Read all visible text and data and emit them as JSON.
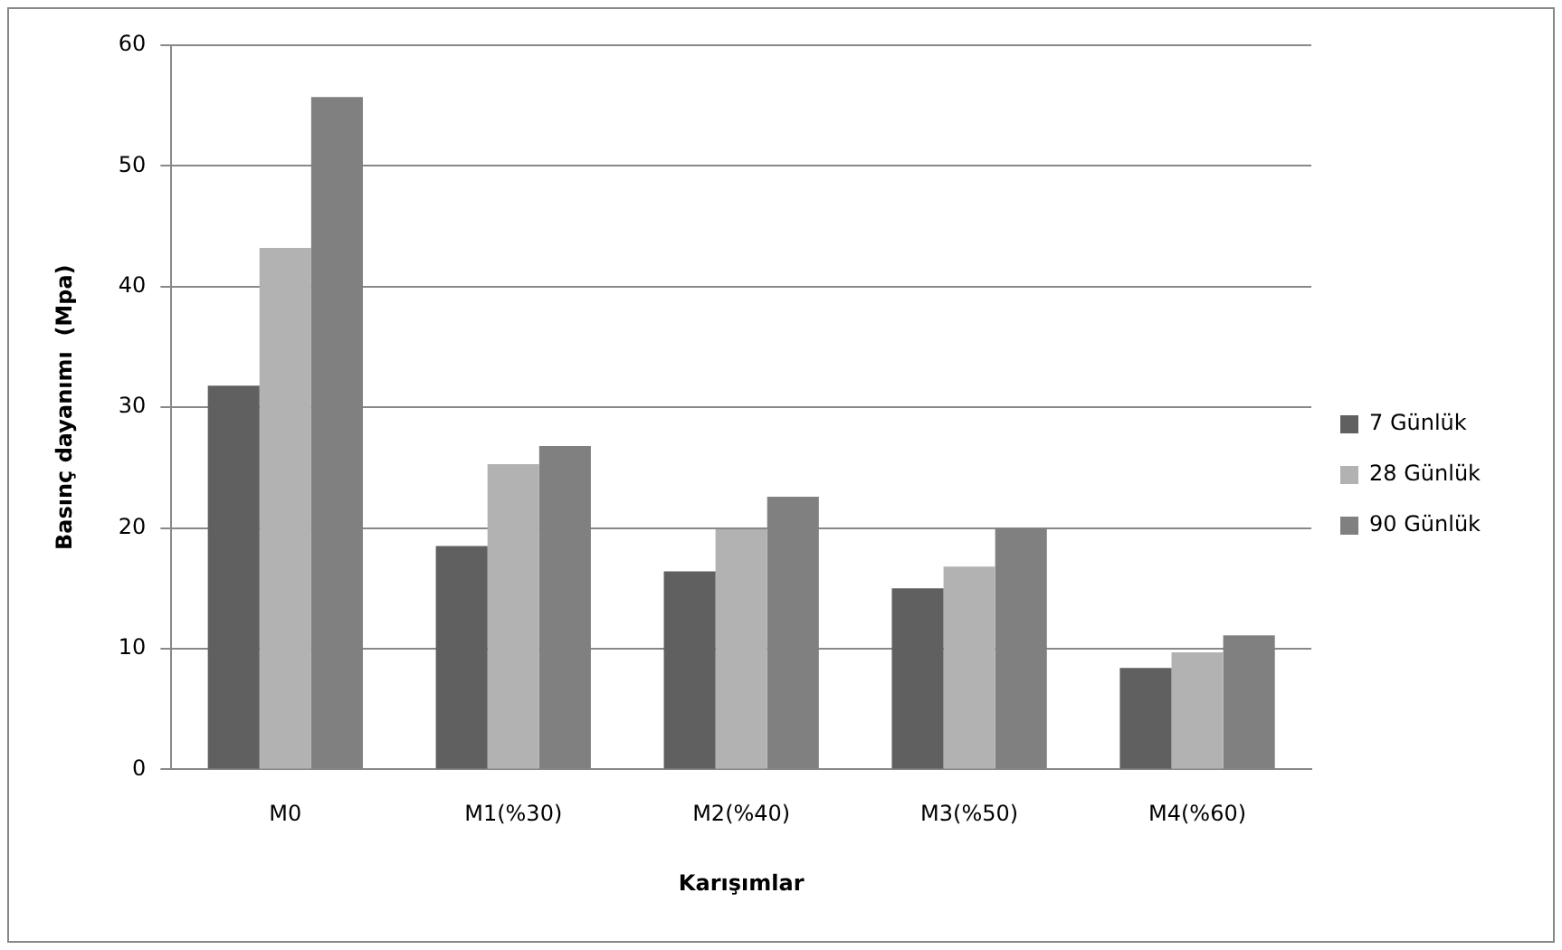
{
  "chart_data": {
    "type": "bar",
    "xlabel": "Karışımlar",
    "ylabel": "Basınç dayanımı  (Mpa)",
    "categories": [
      "M0",
      "M1(%30)",
      "M2(%40)",
      "M3(%50)",
      "M4(%60)"
    ],
    "series": [
      {
        "name": "7 Günlük",
        "color": "#606060",
        "values": [
          31.8,
          18.5,
          16.4,
          15.0,
          8.4
        ]
      },
      {
        "name": "28 Günlük",
        "color": "#b2b2b2",
        "values": [
          43.2,
          25.3,
          19.9,
          16.8,
          9.7
        ]
      },
      {
        "name": "90 Günlük",
        "color": "#808080",
        "values": [
          55.7,
          26.8,
          22.6,
          20.0,
          11.1
        ]
      }
    ],
    "ylim": [
      0,
      60
    ],
    "yticks": [
      0,
      10,
      20,
      30,
      40,
      50,
      60
    ],
    "grid": "y",
    "legend": "right"
  }
}
